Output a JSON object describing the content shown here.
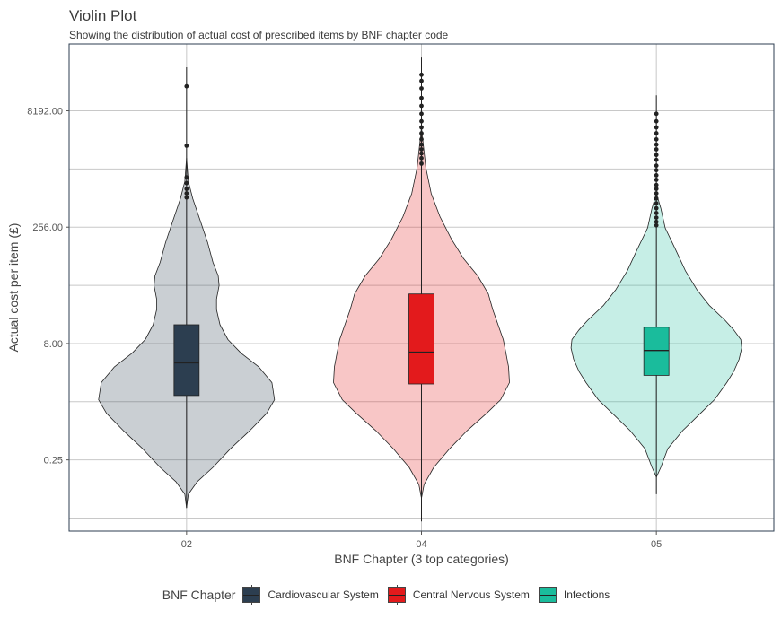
{
  "title": "Violin Plot",
  "subtitle": "Showing the distribution of actual cost of prescribed items by BNF chapter code",
  "colors": {
    "panel_border": "#2c3e50",
    "grid": "#c8c8c8",
    "line": "#222222"
  },
  "chart_data": {
    "type": "violin",
    "xlabel": "BNF Chapter (3 top categories)",
    "ylabel": "Actual cost per item (£)",
    "y_scale": "log2",
    "ylim": [
      0.03,
      60000
    ],
    "y_ticks": [
      0.25,
      8,
      256,
      8192
    ],
    "y_tick_labels": [
      "0.25",
      "8.00",
      "256.00",
      "8192.00"
    ],
    "y_minor_gridlines": [
      0.0442,
      1.414,
      45.25,
      1448
    ],
    "categories": [
      "02",
      "04",
      "05"
    ],
    "legend": {
      "title": "BNF Chapter",
      "entries": [
        "Cardiovascular System",
        "Central Nervous System",
        "Infections"
      ]
    },
    "series": [
      {
        "name": "Cardiovascular System",
        "category": "02",
        "fill": "#2c3e50",
        "fill_opacity": 0.25,
        "box_fill": "#2c3e50",
        "whisker_low": 0.06,
        "q1": 1.7,
        "median": 4.5,
        "q3": 14,
        "whisker_high": 30000,
        "outliers": [
          17000,
          2900,
          1130,
          950,
          800,
          700,
          620
        ],
        "density": [
          [
            0.06,
            0.0
          ],
          [
            0.09,
            0.02
          ],
          [
            0.13,
            0.12
          ],
          [
            0.2,
            0.3
          ],
          [
            0.35,
            0.5
          ],
          [
            0.6,
            0.72
          ],
          [
            1.0,
            0.91
          ],
          [
            1.5,
            1.0
          ],
          [
            2.5,
            0.97
          ],
          [
            4.0,
            0.82
          ],
          [
            6.0,
            0.62
          ],
          [
            9.0,
            0.47
          ],
          [
            14.0,
            0.38
          ],
          [
            22.0,
            0.34
          ],
          [
            30.0,
            0.34
          ],
          [
            45.0,
            0.37
          ],
          [
            60.0,
            0.36
          ],
          [
            90.0,
            0.3
          ],
          [
            160.0,
            0.24
          ],
          [
            300.0,
            0.16
          ],
          [
            600.0,
            0.07
          ],
          [
            1000.0,
            0.02
          ],
          [
            2000.0,
            0.0
          ]
        ]
      },
      {
        "name": "Central Nervous System",
        "category": "04",
        "fill": "#e31a1c",
        "fill_opacity": 0.25,
        "box_fill": "#e31a1c",
        "whisker_low": 0.04,
        "q1": 2.4,
        "median": 6.2,
        "q3": 35,
        "whisker_high": 40000,
        "outliers": [
          24000,
          20000,
          16000,
          12000,
          9500,
          7500,
          6000,
          5000,
          4200,
          3500,
          3000,
          2600,
          2300,
          2000,
          1700
        ],
        "density": [
          [
            0.08,
            0.0
          ],
          [
            0.12,
            0.03
          ],
          [
            0.2,
            0.14
          ],
          [
            0.35,
            0.32
          ],
          [
            0.6,
            0.52
          ],
          [
            1.0,
            0.74
          ],
          [
            1.5,
            0.9
          ],
          [
            2.5,
            1.0
          ],
          [
            4.0,
            0.99
          ],
          [
            6.0,
            0.96
          ],
          [
            9.0,
            0.93
          ],
          [
            14.0,
            0.87
          ],
          [
            22.0,
            0.81
          ],
          [
            35.0,
            0.76
          ],
          [
            60.0,
            0.64
          ],
          [
            100.0,
            0.48
          ],
          [
            180.0,
            0.34
          ],
          [
            350.0,
            0.21
          ],
          [
            700.0,
            0.11
          ],
          [
            1500.0,
            0.05
          ],
          [
            3000.0,
            0.02
          ],
          [
            5000.0,
            0.0
          ]
        ]
      },
      {
        "name": "Infections",
        "category": "05",
        "fill": "#1abc9c",
        "fill_opacity": 0.25,
        "box_fill": "#1abc9c",
        "whisker_low": 0.09,
        "q1": 3.1,
        "median": 6.5,
        "q3": 13,
        "whisker_high": 13000,
        "outliers": [
          7500,
          6000,
          5000,
          4200,
          3500,
          3000,
          2600,
          2200,
          1900,
          1600,
          1400,
          1200,
          1050,
          900,
          800,
          700,
          600,
          520,
          450,
          390,
          340,
          300,
          270
        ],
        "density": [
          [
            0.15,
            0.0
          ],
          [
            0.2,
            0.05
          ],
          [
            0.35,
            0.13
          ],
          [
            0.6,
            0.3
          ],
          [
            1.0,
            0.5
          ],
          [
            1.5,
            0.66
          ],
          [
            2.5,
            0.8
          ],
          [
            3.5,
            0.88
          ],
          [
            5.0,
            0.94
          ],
          [
            7.0,
            0.97
          ],
          [
            9.0,
            0.96
          ],
          [
            12.0,
            0.88
          ],
          [
            16.0,
            0.78
          ],
          [
            25.0,
            0.6
          ],
          [
            40.0,
            0.46
          ],
          [
            70.0,
            0.33
          ],
          [
            130.0,
            0.22
          ],
          [
            250.0,
            0.1
          ],
          [
            450.0,
            0.05
          ],
          [
            700.0,
            0.0
          ]
        ]
      }
    ]
  }
}
